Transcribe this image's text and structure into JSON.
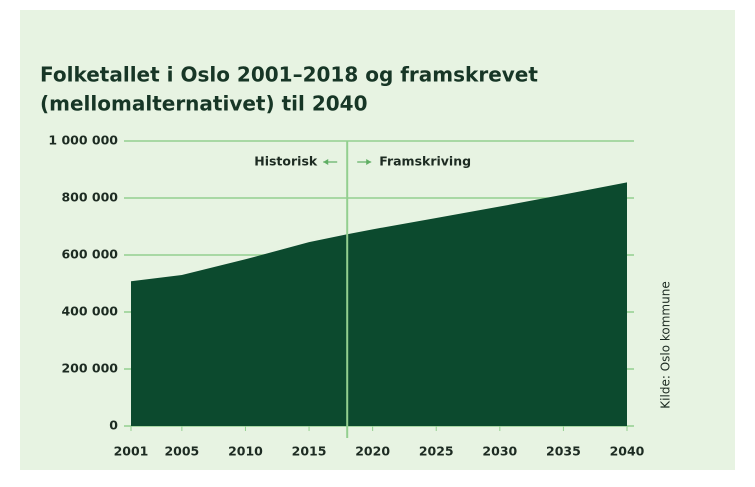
{
  "chart_data": {
    "type": "area",
    "title": [
      "Folketallet i Oslo 2001–2018 og framskrevet",
      "(mellomalternativet) til 2040"
    ],
    "series": [
      {
        "name": "Folketall",
        "color": "#0c4a2e",
        "x": [
          2001,
          2005,
          2010,
          2015,
          2018,
          2020,
          2025,
          2030,
          2035,
          2040
        ],
        "values": [
          508000,
          530000,
          585000,
          645000,
          673000,
          690000,
          730000,
          770000,
          812000,
          855000
        ]
      }
    ],
    "xlim": [
      2001,
      2040
    ],
    "xticks": [
      2001,
      2005,
      2010,
      2015,
      2020,
      2025,
      2030,
      2035,
      2040
    ],
    "ylim": [
      0,
      1000000
    ],
    "yticks": [
      0,
      {
        "value": 200000,
        "label": "200 000"
      },
      {
        "value": 400000,
        "label": "400 000"
      },
      {
        "value": 600000,
        "label": "600 000"
      },
      {
        "value": 800000,
        "label": "800 000"
      },
      {
        "value": 1000000,
        "label": "1 000 000"
      }
    ],
    "grid": true,
    "grid_color": "#93cf8f",
    "background": "#e7f3e2",
    "divider": {
      "x": 2018,
      "left_label": "Historisk",
      "right_label": "Framskriving"
    },
    "source": "Kilde: Oslo kommune"
  }
}
